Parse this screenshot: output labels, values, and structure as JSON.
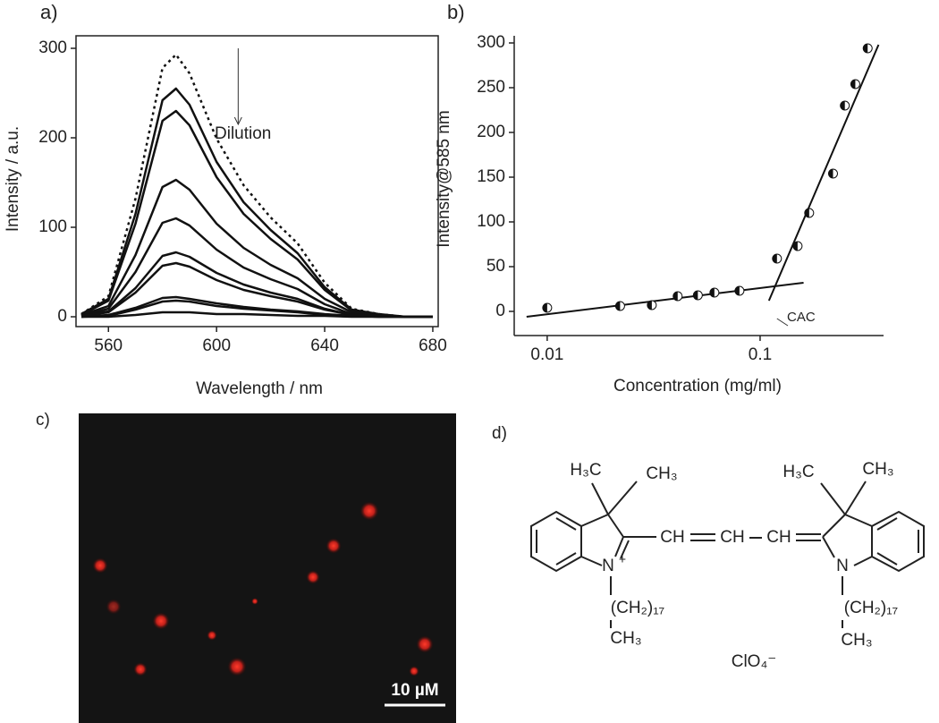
{
  "chart_data": [
    {
      "type": "line",
      "panel_label": "a)",
      "xlabel": "Wavelength / nm",
      "ylabel": "Intensity / a.u.",
      "annotation": "Dilution",
      "x": [
        550,
        560,
        570,
        580,
        585,
        590,
        600,
        610,
        620,
        630,
        640,
        650,
        660,
        670,
        680
      ],
      "series": [
        {
          "color": "#111111",
          "style": "dotted",
          "values": [
            3,
            23,
            132,
            278,
            293,
            272,
            199,
            147,
            111,
            82,
            38,
            9,
            3,
            0,
            0
          ]
        },
        {
          "color": "#111111",
          "values": [
            3,
            20,
            115,
            242,
            255,
            237,
            173,
            128,
            97,
            71,
            33,
            8,
            3,
            0,
            0
          ]
        },
        {
          "color": "#111111",
          "values": [
            2,
            18,
            104,
            219,
            230,
            214,
            156,
            115,
            87,
            64,
            30,
            7,
            2,
            0,
            0
          ]
        },
        {
          "color": "#111111",
          "values": [
            2,
            12,
            69,
            145,
            153,
            142,
            104,
            77,
            58,
            43,
            20,
            5,
            2,
            0,
            0
          ]
        },
        {
          "color": "#111111",
          "values": [
            1,
            9,
            50,
            105,
            110,
            102,
            75,
            55,
            42,
            31,
            14,
            3,
            1,
            0,
            0
          ]
        },
        {
          "color": "#111111",
          "values": [
            1,
            6,
            32,
            68,
            72,
            67,
            49,
            36,
            27,
            20,
            9,
            2,
            1,
            0,
            0
          ]
        },
        {
          "color": "#111111",
          "values": [
            1,
            5,
            27,
            57,
            60,
            56,
            41,
            30,
            23,
            17,
            8,
            2,
            1,
            0,
            0
          ]
        },
        {
          "color": "#111111",
          "values": [
            0,
            2,
            10,
            21,
            22,
            20,
            15,
            11,
            8,
            6,
            3,
            1,
            0,
            0,
            0
          ]
        },
        {
          "color": "#111111",
          "values": [
            0,
            1,
            8,
            17,
            18,
            17,
            12,
            9,
            7,
            5,
            2,
            1,
            0,
            0,
            0
          ]
        },
        {
          "color": "#111111",
          "values": [
            0,
            0,
            2,
            5,
            5,
            5,
            3,
            3,
            2,
            1,
            1,
            0,
            0,
            0,
            0
          ]
        }
      ],
      "xlim": [
        548,
        682
      ],
      "ylim": [
        -11,
        314
      ],
      "xticks": [
        560,
        600,
        640,
        680
      ],
      "yticks": [
        0,
        100,
        200,
        300
      ]
    },
    {
      "type": "scatter",
      "panel_label": "b)",
      "xlabel": "Concentration (mg/ml)",
      "ylabel": "Intensity@585 nm",
      "annotation": "CAC",
      "log_x": true,
      "color": "#111111",
      "x": [
        0.01,
        0.022,
        0.031,
        0.041,
        0.051,
        0.061,
        0.08,
        0.12,
        0.15,
        0.17,
        0.22,
        0.25,
        0.28,
        0.32
      ],
      "values": [
        4,
        6,
        7,
        17,
        18,
        21,
        23,
        59,
        73,
        110,
        154,
        230,
        254,
        294
      ],
      "fit_lines": [
        {
          "x": [
            0.008,
            0.16
          ],
          "values": [
            -6,
            32
          ]
        },
        {
          "x": [
            0.11,
            0.36
          ],
          "values": [
            12,
            298
          ]
        }
      ],
      "xlim": [
        0.007,
        0.38
      ],
      "ylim": [
        -27,
        308
      ],
      "xticks": [
        0.01,
        0.1
      ],
      "yticks": [
        0,
        50,
        100,
        150,
        200,
        250,
        300
      ]
    }
  ],
  "image": {
    "panel_label": "c)",
    "scale_bar": "10 µM"
  },
  "structure": {
    "panel_label": "d)",
    "left_methyl_a": "H₃C",
    "left_methyl_b": "CH₃",
    "ch1": "CH",
    "ch2": "CH",
    "ch3": "CH",
    "left_n": "N",
    "charge": "+",
    "left_chain": "(CH₂)₁₇",
    "left_chain_end": "CH₃",
    "right_methyl_a": "H₃C",
    "right_methyl_b": "CH₃",
    "right_n": "N",
    "right_chain": "(CH₂)₁₇",
    "right_chain_end": "CH₃",
    "counterion": "ClO₄⁻"
  }
}
